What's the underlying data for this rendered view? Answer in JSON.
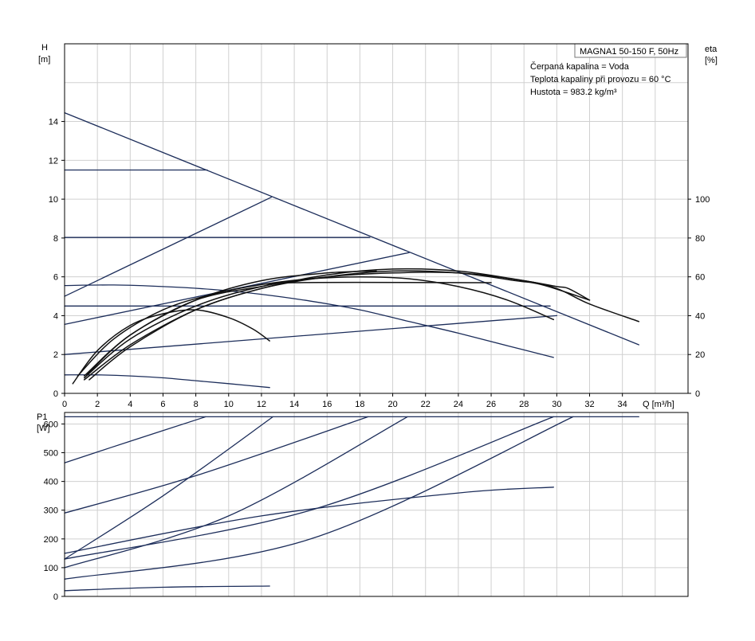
{
  "chart_data": [
    {
      "type": "line",
      "panel": "head-efficiency",
      "title": "MAGNA1 50-150 F, 50Hz",
      "info_lines": [
        "Čerpaná kapalina = Voda",
        "Teplota kapaliny při provozu = 60 °C",
        "Hustota = 983.2 kg/m³"
      ],
      "ylabel": "H",
      "yunit": "[m]",
      "y2label": "eta",
      "y2unit": "[%]",
      "xlabel": "Q [m³/h]",
      "xlim": [
        0,
        38
      ],
      "ylim": [
        0,
        18
      ],
      "y2lim": [
        0,
        180
      ],
      "xticks": [
        0,
        2,
        4,
        6,
        8,
        10,
        12,
        14,
        16,
        18,
        20,
        22,
        24,
        26,
        28,
        30,
        32,
        34
      ],
      "yticks": [
        0,
        2,
        4,
        6,
        8,
        10,
        12,
        14
      ],
      "y2ticks": [
        0,
        20,
        40,
        60,
        80,
        100
      ],
      "grid": true,
      "head_series": [
        {
          "x": [
            0,
            35
          ],
          "y": [
            14.45,
            2.5
          ]
        },
        {
          "x": [
            0,
            8.7
          ],
          "y": [
            11.5,
            11.5
          ]
        },
        {
          "x": [
            0,
            18.6
          ],
          "y": [
            8.03,
            8.03
          ]
        },
        {
          "x": [
            0,
            29.6
          ],
          "y": [
            4.5,
            4.5
          ]
        },
        {
          "x": [
            0,
            12.6
          ],
          "y": [
            5.0,
            10.1
          ]
        },
        {
          "x": [
            0,
            21
          ],
          "y": [
            3.55,
            7.25
          ]
        },
        {
          "x": [
            0,
            30
          ],
          "y": [
            2.0,
            4.0
          ]
        },
        {
          "x": [
            0,
            3,
            6,
            9,
            12,
            15,
            18,
            21,
            24,
            27,
            29.8
          ],
          "y": [
            5.55,
            5.58,
            5.5,
            5.35,
            5.1,
            4.75,
            4.3,
            3.7,
            3.1,
            2.45,
            1.85
          ]
        },
        {
          "x": [
            0,
            2,
            4,
            6,
            8,
            10,
            12.5
          ],
          "y": [
            0.95,
            0.95,
            0.9,
            0.8,
            0.65,
            0.5,
            0.3
          ]
        }
      ],
      "efficiency_series": [
        {
          "x": [
            0.5,
            2,
            4,
            6,
            8,
            10,
            11.5,
            12.5
          ],
          "y": [
            5,
            22,
            35,
            41,
            43,
            39,
            33,
            27
          ]
        },
        {
          "x": [
            0.8,
            3,
            6,
            9,
            12,
            15,
            18,
            21,
            24,
            27,
            29.8
          ],
          "y": [
            9,
            28,
            43,
            51,
            56,
            59,
            60,
            59,
            55,
            48,
            38
          ]
        },
        {
          "x": [
            1.2,
            4,
            8,
            12,
            16,
            20,
            24,
            28,
            30,
            32,
            35
          ],
          "y": [
            8,
            28,
            45,
            55,
            60,
            62,
            62,
            58,
            54,
            46,
            37
          ]
        },
        {
          "x": [
            1.2,
            4,
            8,
            12,
            16,
            20,
            24,
            27.5,
            28.5,
            29.5,
            32
          ],
          "y": [
            7,
            25,
            43,
            54,
            60,
            63,
            62,
            58,
            57,
            55,
            48
          ]
        },
        {
          "x": [
            1.5,
            4,
            8,
            12,
            16,
            20,
            24,
            28,
            30,
            30.7,
            32
          ],
          "y": [
            7,
            24,
            43,
            54,
            61,
            64,
            63,
            58,
            55,
            54,
            48
          ]
        },
        {
          "x": [
            1.2,
            4,
            8,
            12,
            14,
            26
          ],
          "y": [
            9,
            30,
            48,
            55,
            57,
            57
          ]
        },
        {
          "x": [
            1.4,
            4,
            8,
            12,
            16,
            19
          ],
          "y": [
            10,
            30,
            48,
            58,
            62,
            63
          ]
        }
      ]
    },
    {
      "type": "line",
      "panel": "power",
      "ylabel": "P1",
      "yunit": "[W]",
      "xlim": [
        0,
        38
      ],
      "ylim": [
        0,
        640
      ],
      "yticks": [
        0,
        100,
        200,
        300,
        400,
        500,
        600
      ],
      "grid": true,
      "series": [
        {
          "x": [
            0,
            35
          ],
          "y": [
            625,
            625
          ]
        },
        {
          "x": [
            0,
            4,
            8.6
          ],
          "y": [
            465,
            540,
            625
          ]
        },
        {
          "x": [
            0,
            6,
            12.7
          ],
          "y": [
            130,
            350,
            625
          ]
        },
        {
          "x": [
            0,
            8,
            18.5
          ],
          "y": [
            290,
            420,
            625
          ]
        },
        {
          "x": [
            0,
            10,
            20.9
          ],
          "y": [
            100,
            280,
            625
          ]
        },
        {
          "x": [
            0,
            12,
            24,
            29.8
          ],
          "y": [
            150,
            280,
            360,
            380
          ]
        },
        {
          "x": [
            0,
            15,
            29.8
          ],
          "y": [
            130,
            300,
            625
          ]
        },
        {
          "x": [
            0,
            15,
            31
          ],
          "y": [
            60,
            200,
            625
          ]
        },
        {
          "x": [
            0,
            6,
            12.5
          ],
          "y": [
            20,
            32,
            36
          ]
        }
      ]
    }
  ]
}
